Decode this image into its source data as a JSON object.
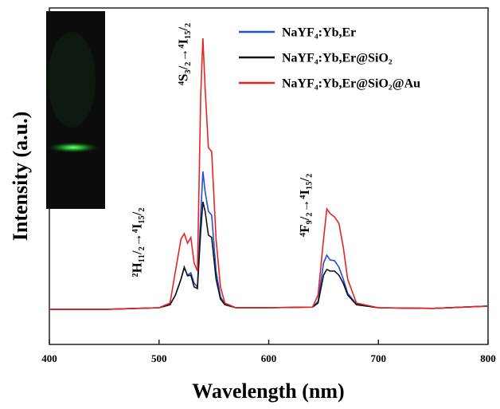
{
  "chart_data": {
    "type": "line",
    "x_label": "Wavelength (nm)",
    "y_label": "Intensity (a.u.)",
    "x": [
      400,
      450,
      480,
      500,
      510,
      515,
      520,
      523,
      526,
      529,
      532,
      535,
      538,
      540,
      542,
      545,
      548,
      552,
      556,
      560,
      570,
      600,
      640,
      645,
      650,
      653,
      656,
      660,
      664,
      668,
      672,
      680,
      700,
      750,
      800
    ],
    "series": [
      {
        "name": "NaYF₄:Yb,Er",
        "color": "#1f4fd6",
        "values": [
          10.4,
          10.4,
          10.7,
          10.9,
          11.8,
          14.7,
          19.4,
          22.7,
          20.6,
          21.3,
          18.2,
          17.1,
          38.4,
          51.4,
          45.5,
          39.6,
          38.4,
          21.8,
          14.2,
          12.0,
          10.9,
          10.9,
          11.1,
          12.8,
          24.2,
          26.5,
          25.1,
          24.9,
          23.0,
          19.4,
          15.2,
          12.0,
          10.9,
          10.7,
          11.4
        ]
      },
      {
        "name": "NaYF₄:Yb,Er@SiO₂",
        "color": "#111111",
        "values": [
          10.4,
          10.4,
          10.7,
          10.9,
          11.8,
          14.7,
          19.4,
          23.0,
          20.4,
          20.6,
          17.1,
          16.6,
          33.6,
          42.4,
          39.6,
          32.5,
          31.8,
          19.4,
          13.5,
          11.8,
          10.9,
          10.9,
          11.1,
          12.3,
          20.6,
          22.3,
          21.8,
          21.8,
          20.6,
          18.2,
          14.7,
          11.8,
          10.9,
          10.7,
          11.4
        ]
      },
      {
        "name": "NaYF₄:Yb,Er@SiO₂@Au",
        "color": "#e8231f",
        "values": [
          10.4,
          10.4,
          10.7,
          10.9,
          12.3,
          21.8,
          31.3,
          32.9,
          30.1,
          31.8,
          24.2,
          21.8,
          73.9,
          91.0,
          76.3,
          58.5,
          57.3,
          31.3,
          17.1,
          12.3,
          10.9,
          10.9,
          11.1,
          14.7,
          31.3,
          40.3,
          38.9,
          37.9,
          36.0,
          28.9,
          19.4,
          12.3,
          10.9,
          10.7,
          11.4
        ]
      }
    ],
    "xlim": [
      400,
      800
    ],
    "xticks": [
      400,
      500,
      600,
      700,
      800
    ],
    "ylim": [
      0,
      100
    ],
    "annotations": [
      {
        "text": "²H₁₁/₂→⁴I₁₅/₂",
        "x": 481,
        "y": 20
      },
      {
        "text": "⁴S₃/₂→⁴I₁₅/₂",
        "x": 523,
        "y": 77
      },
      {
        "text": "⁴F₉/₂→⁴I₁₅/₂",
        "x": 634,
        "y": 32
      }
    ],
    "legend": "upper right"
  }
}
